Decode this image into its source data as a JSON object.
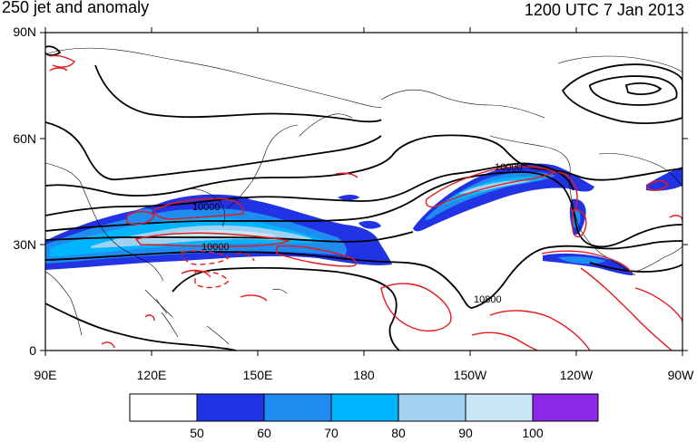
{
  "title": "250 jet and anomaly",
  "timestamp": "1200 UTC 7 Jan 2013",
  "axes": {
    "lat_labels": [
      "90N",
      "60N",
      "30N",
      "0"
    ],
    "lon_labels": [
      "90E",
      "120E",
      "150E",
      "180",
      "150W",
      "120W",
      "90W"
    ]
  },
  "contour_labels": [
    "10000",
    "10000",
    "10000",
    "10800"
  ],
  "colorbar": {
    "levels": [
      "50",
      "60",
      "70",
      "80",
      "90",
      "100"
    ],
    "colors": [
      "#ffffff",
      "#2233e6",
      "#1e8cf0",
      "#00b4ff",
      "#a0d2f0",
      "#c8e6f8",
      "#8c28e6"
    ]
  },
  "colors": {
    "anomaly_contour": "#e41a1c",
    "height_contour": "#000000",
    "coastline": "#000000"
  }
}
